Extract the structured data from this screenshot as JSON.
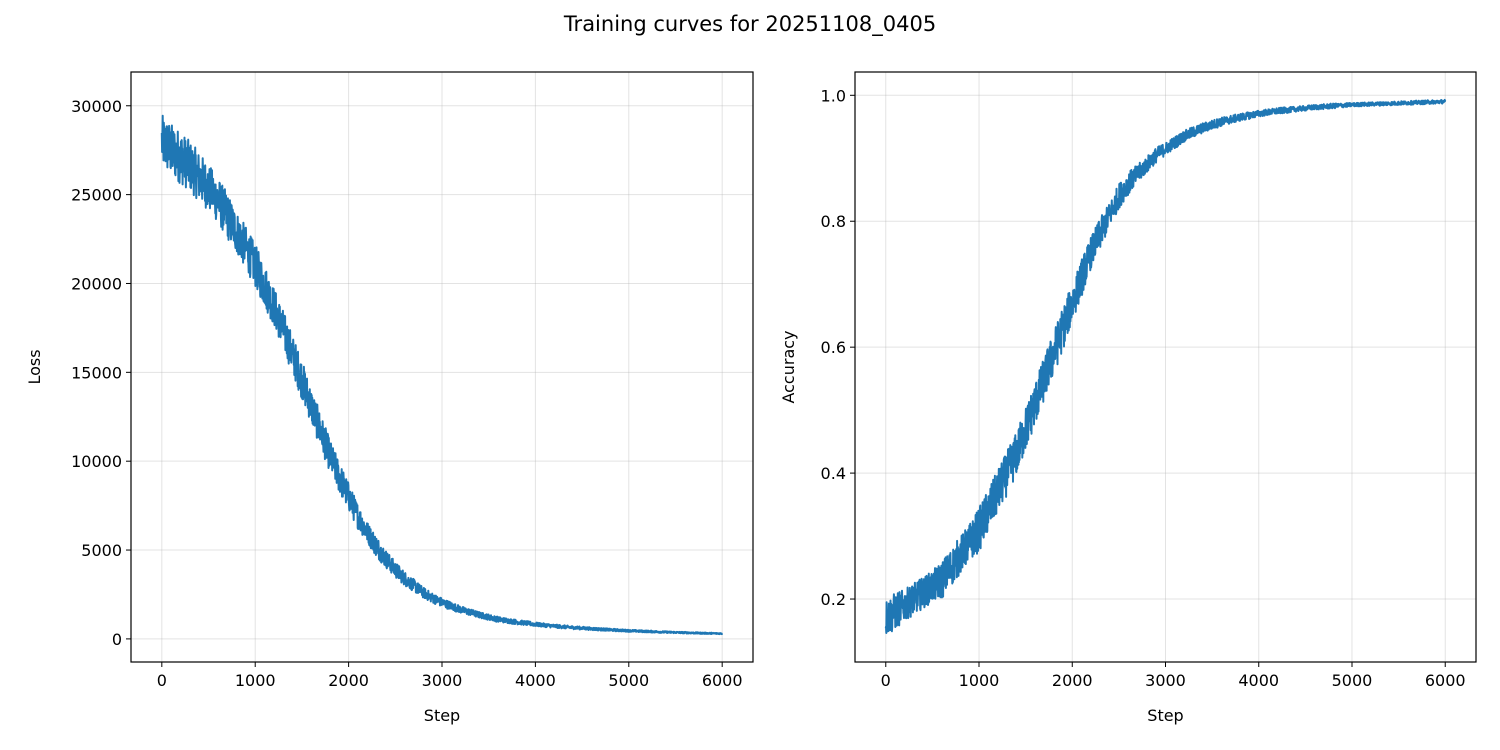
{
  "figure": {
    "title": "Training curves for 20251108_0405"
  },
  "chart_data": [
    {
      "type": "line",
      "title": "",
      "xlabel": "Step",
      "ylabel": "Loss",
      "xlim": [
        -330,
        6330
      ],
      "ylim": [
        -1300,
        31900
      ],
      "xticks": [
        0,
        1000,
        2000,
        3000,
        4000,
        5000,
        6000
      ],
      "xtick_labels": [
        "0",
        "1000",
        "2000",
        "3000",
        "4000",
        "5000",
        "6000"
      ],
      "yticks": [
        0,
        5000,
        10000,
        15000,
        20000,
        25000,
        30000
      ],
      "ytick_labels": [
        "0",
        "5000",
        "10000",
        "15000",
        "20000",
        "25000",
        "30000"
      ],
      "grid": true,
      "color": "#1f77b4",
      "series": [
        {
          "x": [
            0,
            100,
            200,
            300,
            400,
            500,
            600,
            700,
            800,
            900,
            1000,
            1100,
            1200,
            1300,
            1400,
            1500,
            1600,
            1700,
            1800,
            1900,
            2000,
            2100,
            2200,
            2300,
            2400,
            2500,
            2600,
            2700,
            2800,
            2900,
            3000,
            3200,
            3400,
            3600,
            3800,
            4000,
            4200,
            4400,
            4600,
            4800,
            5000,
            5200,
            5400,
            5600,
            5800,
            6000
          ],
          "y": [
            28000,
            27500,
            27100,
            26600,
            26000,
            25400,
            24700,
            23800,
            22900,
            22000,
            21000,
            19900,
            18700,
            17400,
            16000,
            14600,
            13100,
            11700,
            10300,
            9100,
            8000,
            6900,
            6000,
            5200,
            4500,
            3900,
            3400,
            3000,
            2600,
            2300,
            2050,
            1650,
            1350,
            1100,
            950,
            820,
            720,
            640,
            570,
            510,
            460,
            420,
            380,
            350,
            320,
            300
          ],
          "noise_band": [
            1500,
            1500,
            1500,
            1400,
            1400,
            1300,
            1300,
            1300,
            1200,
            1200,
            1200,
            1200,
            1100,
            1100,
            1100,
            1100,
            1000,
            1000,
            900,
            900,
            800,
            700,
            600,
            600,
            500,
            450,
            400,
            350,
            300,
            280,
            250,
            200,
            170,
            150,
            130,
            110,
            100,
            90,
            80,
            70,
            60,
            55,
            50,
            45,
            40,
            35
          ]
        }
      ]
    },
    {
      "type": "line",
      "title": "",
      "xlabel": "Step",
      "ylabel": "Accuracy",
      "xlim": [
        -330,
        6330
      ],
      "ylim": [
        0.1,
        1.037
      ],
      "xticks": [
        0,
        1000,
        2000,
        3000,
        4000,
        5000,
        6000
      ],
      "xtick_labels": [
        "0",
        "1000",
        "2000",
        "3000",
        "4000",
        "5000",
        "6000"
      ],
      "yticks": [
        0.2,
        0.4,
        0.6,
        0.8,
        1.0
      ],
      "ytick_labels": [
        "0.2",
        "0.4",
        "0.6",
        "0.8",
        "1.0"
      ],
      "grid": true,
      "color": "#1f77b4",
      "series": [
        {
          "x": [
            0,
            100,
            200,
            300,
            400,
            500,
            600,
            700,
            800,
            900,
            1000,
            1100,
            1200,
            1300,
            1400,
            1500,
            1600,
            1700,
            1800,
            1900,
            2000,
            2100,
            2200,
            2300,
            2400,
            2500,
            2600,
            2700,
            2800,
            2900,
            3000,
            3200,
            3400,
            3600,
            3800,
            4000,
            4200,
            4400,
            4600,
            4800,
            5000,
            5200,
            5400,
            5600,
            5800,
            6000
          ],
          "y": [
            0.17,
            0.18,
            0.19,
            0.2,
            0.21,
            0.22,
            0.23,
            0.25,
            0.27,
            0.29,
            0.31,
            0.34,
            0.37,
            0.4,
            0.43,
            0.47,
            0.51,
            0.55,
            0.59,
            0.63,
            0.67,
            0.71,
            0.75,
            0.78,
            0.81,
            0.84,
            0.86,
            0.875,
            0.89,
            0.905,
            0.915,
            0.935,
            0.948,
            0.958,
            0.965,
            0.971,
            0.975,
            0.978,
            0.981,
            0.983,
            0.985,
            0.986,
            0.987,
            0.988,
            0.989,
            0.99
          ],
          "noise_band": [
            0.03,
            0.03,
            0.025,
            0.025,
            0.025,
            0.025,
            0.03,
            0.03,
            0.03,
            0.03,
            0.035,
            0.035,
            0.035,
            0.035,
            0.035,
            0.035,
            0.035,
            0.035,
            0.035,
            0.035,
            0.03,
            0.03,
            0.025,
            0.025,
            0.02,
            0.02,
            0.018,
            0.015,
            0.013,
            0.012,
            0.01,
            0.009,
            0.008,
            0.007,
            0.006,
            0.005,
            0.005,
            0.004,
            0.004,
            0.004,
            0.003,
            0.003,
            0.003,
            0.003,
            0.003,
            0.003
          ]
        }
      ]
    }
  ]
}
